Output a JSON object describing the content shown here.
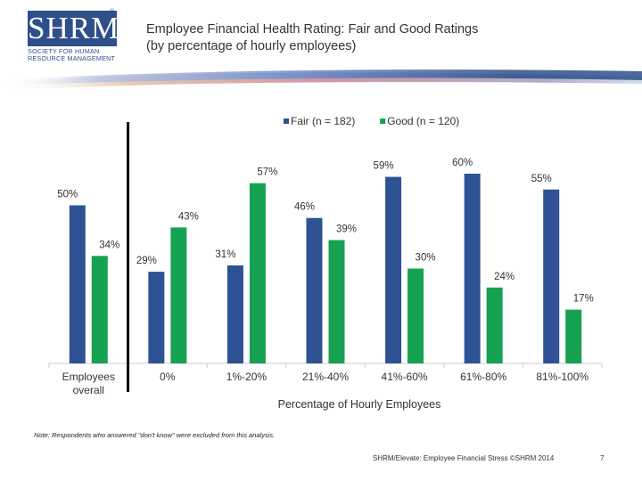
{
  "header": {
    "logo_text": "SHRM",
    "logo_registered": "®",
    "logo_subtitle_line1": "Society for Human",
    "logo_subtitle_line2": "Resource Management",
    "title_line1": "Employee Financial Health Rating: Fair and Good Ratings",
    "title_line2": "(by percentage of hourly employees)"
  },
  "colors": {
    "fair": "#2e5294",
    "good": "#17a152",
    "brand": "#2e4f8a",
    "axis": "#cccccc",
    "divider": "#000000"
  },
  "chart_data": {
    "type": "bar",
    "title": "Employee Financial Health Rating: Fair and Good Ratings (by percentage of hourly employees)",
    "xlabel": "Percentage of Hourly Employees",
    "ylabel": "",
    "ylim": [
      0,
      60
    ],
    "grid": false,
    "legend_position": "top",
    "categories": [
      "Employees overall",
      "0%",
      "1%-20%",
      "21%-40%",
      "41%-60%",
      "61%-80%",
      "81%-100%"
    ],
    "category_lines": [
      [
        "Employees",
        "overall"
      ],
      [
        "0%"
      ],
      [
        "1%-20%"
      ],
      [
        "21%-40%"
      ],
      [
        "41%-60%"
      ],
      [
        "61%-80%"
      ],
      [
        "81%-100%"
      ]
    ],
    "series": [
      {
        "name": "Fair (n = 182)",
        "values": [
          50,
          29,
          31,
          46,
          59,
          60,
          55
        ],
        "labels": [
          "50%",
          "29%",
          "31%",
          "46%",
          "59%",
          "60%",
          "55%"
        ]
      },
      {
        "name": "Good (n = 120)",
        "values": [
          34,
          43,
          57,
          39,
          30,
          24,
          17
        ],
        "labels": [
          "34%",
          "43%",
          "57%",
          "39%",
          "30%",
          "24%",
          "17%"
        ]
      }
    ]
  },
  "note": "Note: Respondents who answered \"don't know\" were excluded from this analysis.",
  "footer": {
    "source": "SHRM/Elevate: Employee Financial Stress ©SHRM 2014",
    "page_number": "7"
  }
}
